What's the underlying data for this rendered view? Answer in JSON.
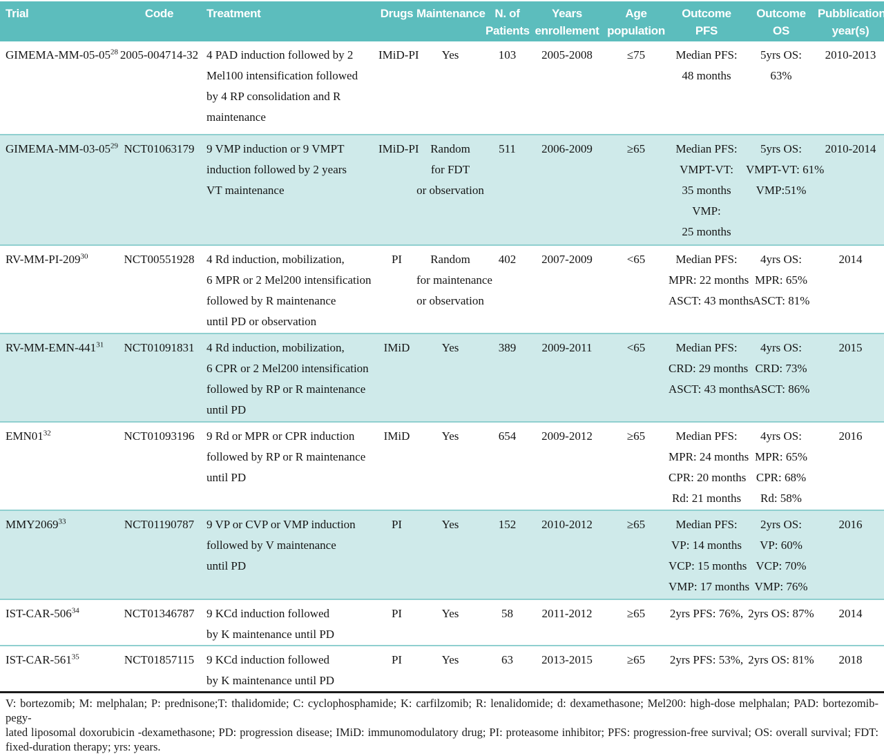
{
  "colors": {
    "header_bg": "#5cbdbd",
    "header_text": "#ffffff",
    "row_shaded_bg": "#cfeaea",
    "row_divider": "#8fcfcf",
    "bottom_rule": "#1a1a1a",
    "text": "#151515"
  },
  "table": {
    "columns": [
      {
        "key": "trial",
        "label": "Trial"
      },
      {
        "key": "code",
        "label": "Code"
      },
      {
        "key": "treatment",
        "label": "Treatment"
      },
      {
        "key": "drugs",
        "label": "Drugs"
      },
      {
        "key": "maintenance",
        "label": "Maintenance"
      },
      {
        "key": "patients",
        "label": "N. of\nPatients"
      },
      {
        "key": "years",
        "label": "Years\nenrollement"
      },
      {
        "key": "age",
        "label": "Age\npopulation"
      },
      {
        "key": "pfs",
        "label": "Outcome\nPFS"
      },
      {
        "key": "os",
        "label": "Outcome\nOS"
      },
      {
        "key": "pub",
        "label": "Pubblication\nyear(s)"
      }
    ],
    "rows": [
      {
        "trial": {
          "name": "GIMEMA-MM-05-05",
          "ref": "28"
        },
        "code": "2005-004714-32",
        "treatment": "4 PAD induction followed by 2\nMel100 intensification followed\nby 4 RP consolidation and R\nmaintenance",
        "drugs": "IMiD-PI",
        "maintenance": "Yes",
        "patients": "103",
        "years": "2005-2008",
        "age": "≤75",
        "pfs": "Median PFS:\n48 months",
        "os": "5yrs OS:\n63%",
        "pub": "2010-2013",
        "shaded": false
      },
      {
        "trial": {
          "name": "GIMEMA-MM-03-05",
          "ref": "29"
        },
        "code": "NCT01063179",
        "treatment": "9 VMP induction or 9 VMPT\ninduction followed by 2 years\nVT maintenance",
        "drugs": "IMiD-PI",
        "maintenance": "Random\nfor FDT\nor observation",
        "patients": "511",
        "years": "2006-2009",
        "age": "≥65",
        "pfs": "Median PFS:\nVMPT-VT:\n35 months\nVMP:\n25 months",
        "os": "5yrs OS:\nVMPT-VT: 61%\nVMP:51%",
        "pub": "2010-2014",
        "shaded": true
      },
      {
        "trial": {
          "name": "RV-MM-PI-209",
          "ref": "30"
        },
        "code": "NCT00551928",
        "treatment": "4 Rd induction, mobilization,\n6 MPR or 2 Mel200 intensification\nfollowed by R maintenance\nuntil PD or observation",
        "drugs": "PI",
        "maintenance": "Random\nfor maintenance\nor observation",
        "patients": "402",
        "years": "2007-2009",
        "age": "<65",
        "pfs": "Median PFS:\nMPR: 22 months\nASCT: 43 months",
        "os": "4yrs OS:\nMPR: 65%\nASCT: 81%",
        "pub": "2014",
        "shaded": false
      },
      {
        "trial": {
          "name": "RV-MM-EMN-441",
          "ref": "31"
        },
        "code": "NCT01091831",
        "treatment": "4 Rd induction, mobilization,\n6 CPR or 2 Mel200 intensification\nfollowed by RP or R maintenance\nuntil PD",
        "drugs": "IMiD",
        "maintenance": "Yes",
        "patients": "389",
        "years": "2009-2011",
        "age": "<65",
        "pfs": "Median PFS:\nCRD: 29 months\nASCT: 43 months",
        "os": "4yrs OS:\nCRD: 73%\nASCT: 86%",
        "pub": "2015",
        "shaded": true
      },
      {
        "trial": {
          "name": "EMN01",
          "ref": "32"
        },
        "code": "NCT01093196",
        "treatment": "9 Rd or MPR or CPR induction\nfollowed by RP or R maintenance\nuntil PD",
        "drugs": "IMiD",
        "maintenance": "Yes",
        "patients": "654",
        "years": "2009-2012",
        "age": "≥65",
        "pfs": "Median PFS:\nMPR: 24 months\nCPR: 20 months\nRd: 21 months",
        "os": "4yrs OS:\nMPR: 65%\nCPR: 68%\nRd: 58%",
        "pub": "2016",
        "shaded": false
      },
      {
        "trial": {
          "name": "MMY2069",
          "ref": "33"
        },
        "code": "NCT01190787",
        "treatment": "9 VP or CVP or VMP induction\nfollowed by V maintenance\nuntil PD",
        "drugs": "PI",
        "maintenance": "Yes",
        "patients": "152",
        "years": "2010-2012",
        "age": "≥65",
        "pfs": "Median PFS:\nVP: 14 months\nVCP: 15 months\nVMP: 17 months",
        "os": "2yrs OS:\nVP: 60%\nVCP: 70%\nVMP: 76%",
        "pub": "2016",
        "shaded": true
      },
      {
        "trial": {
          "name": "IST-CAR-506",
          "ref": "34"
        },
        "code": "NCT01346787",
        "treatment": "9 KCd induction followed\nby K maintenance until PD",
        "drugs": "PI",
        "maintenance": "Yes",
        "patients": "58",
        "years": "2011-2012",
        "age": "≥65",
        "pfs": "2yrs PFS: 76%,",
        "os": "2yrs OS: 87%",
        "pub": "2014",
        "shaded": false
      },
      {
        "trial": {
          "name": "IST-CAR-561",
          "ref": "35"
        },
        "code": "NCT01857115",
        "treatment": "9 KCd induction followed\nby K maintenance until PD",
        "drugs": "PI",
        "maintenance": "Yes",
        "patients": "63",
        "years": "2013-2015",
        "age": "≥65",
        "pfs": "2yrs PFS: 53%,",
        "os": "2yrs OS: 81%",
        "pub": "2018",
        "shaded": false
      }
    ]
  },
  "footnote": {
    "lines": [
      "V: bortezomib; M: melphalan; P: prednisone;T: thalidomide; C: cyclophosphamide; K: carfilzomib; R: lenalidomide; d: dexamethasone; Mel200: high-dose melphalan; PAD: bortezomib-pegy-",
      "lated liposomal doxorubicin -dexamethasone; PD: progression disease; IMiD: immunomodulatory drug; PI: proteasome inhibitor; PFS: progression-free survival; OS: overall survival; FDT:",
      "fixed-duration therapy; yrs: years."
    ]
  }
}
